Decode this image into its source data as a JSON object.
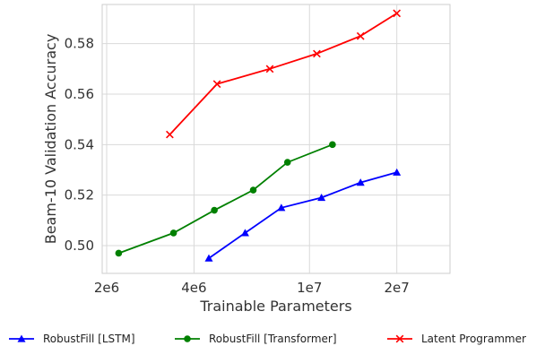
{
  "chart_data": {
    "type": "line",
    "xlabel": "Trainable Parameters",
    "ylabel": "Beam-10 Validation Accuracy",
    "xscale": "log",
    "xlim": [
      1930000,
      30500000
    ],
    "ylim": [
      0.489,
      0.5955
    ],
    "xticks": [
      {
        "value": 2000000,
        "label": "2e6"
      },
      {
        "value": 4000000,
        "label": "4e6"
      },
      {
        "value": 10000000,
        "label": "1e7"
      },
      {
        "value": 20000000,
        "label": "2e7"
      }
    ],
    "yticks": [
      {
        "value": 0.5,
        "label": "0.50"
      },
      {
        "value": 0.52,
        "label": "0.52"
      },
      {
        "value": 0.54,
        "label": "0.54"
      },
      {
        "value": 0.56,
        "label": "0.56"
      },
      {
        "value": 0.58,
        "label": "0.58"
      }
    ],
    "grid": true,
    "legend_position": "bottom",
    "series": [
      {
        "name": "RobustFill [LSTM]",
        "color": "#0000ff",
        "marker": "triangle",
        "x": [
          4500000,
          6000000,
          8000000,
          11000000,
          15000000,
          20000000
        ],
        "y": [
          0.495,
          0.505,
          0.515,
          0.519,
          0.525,
          0.529
        ]
      },
      {
        "name": "RobustFill [Transformer]",
        "color": "#008000",
        "marker": "circle",
        "x": [
          2200000,
          3400000,
          4700000,
          6400000,
          8400000,
          12000000
        ],
        "y": [
          0.497,
          0.505,
          0.514,
          0.522,
          0.533,
          0.54
        ]
      },
      {
        "name": "Latent Programmer",
        "color": "#ff0000",
        "marker": "x",
        "x": [
          3300000,
          4800000,
          7300000,
          10600000,
          15000000,
          20000000
        ],
        "y": [
          0.544,
          0.564,
          0.57,
          0.576,
          0.583,
          0.592
        ]
      }
    ]
  }
}
